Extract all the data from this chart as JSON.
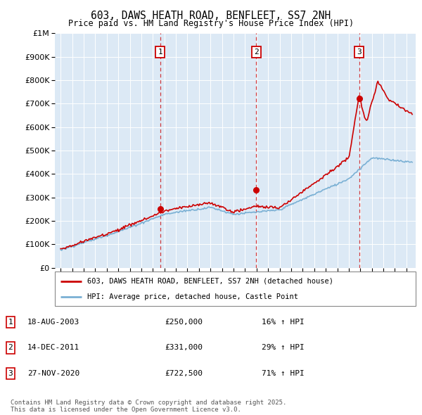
{
  "title": "603, DAWS HEATH ROAD, BENFLEET, SS7 2NH",
  "subtitle": "Price paid vs. HM Land Registry's House Price Index (HPI)",
  "plot_bg_color": "#dce9f5",
  "sale_decimal_dates": [
    2003.63,
    2011.96,
    2020.91
  ],
  "sale_prices": [
    250000,
    331000,
    722500
  ],
  "sale_labels": [
    "1",
    "2",
    "3"
  ],
  "legend_entry1": "603, DAWS HEATH ROAD, BENFLEET, SS7 2NH (detached house)",
  "legend_entry2": "HPI: Average price, detached house, Castle Point",
  "table": [
    {
      "num": "1",
      "date": "18-AUG-2003",
      "price": "£250,000",
      "pct": "16% ↑ HPI"
    },
    {
      "num": "2",
      "date": "14-DEC-2011",
      "price": "£331,000",
      "pct": "29% ↑ HPI"
    },
    {
      "num": "3",
      "date": "27-NOV-2020",
      "price": "£722,500",
      "pct": "71% ↑ HPI"
    }
  ],
  "footer": "Contains HM Land Registry data © Crown copyright and database right 2025.\nThis data is licensed under the Open Government Licence v3.0.",
  "ylim": [
    0,
    1000000
  ],
  "xlim_start": 1994.5,
  "xlim_end": 2025.8,
  "red_color": "#cc0000",
  "blue_color": "#7ab0d4",
  "grid_color": "#ffffff"
}
